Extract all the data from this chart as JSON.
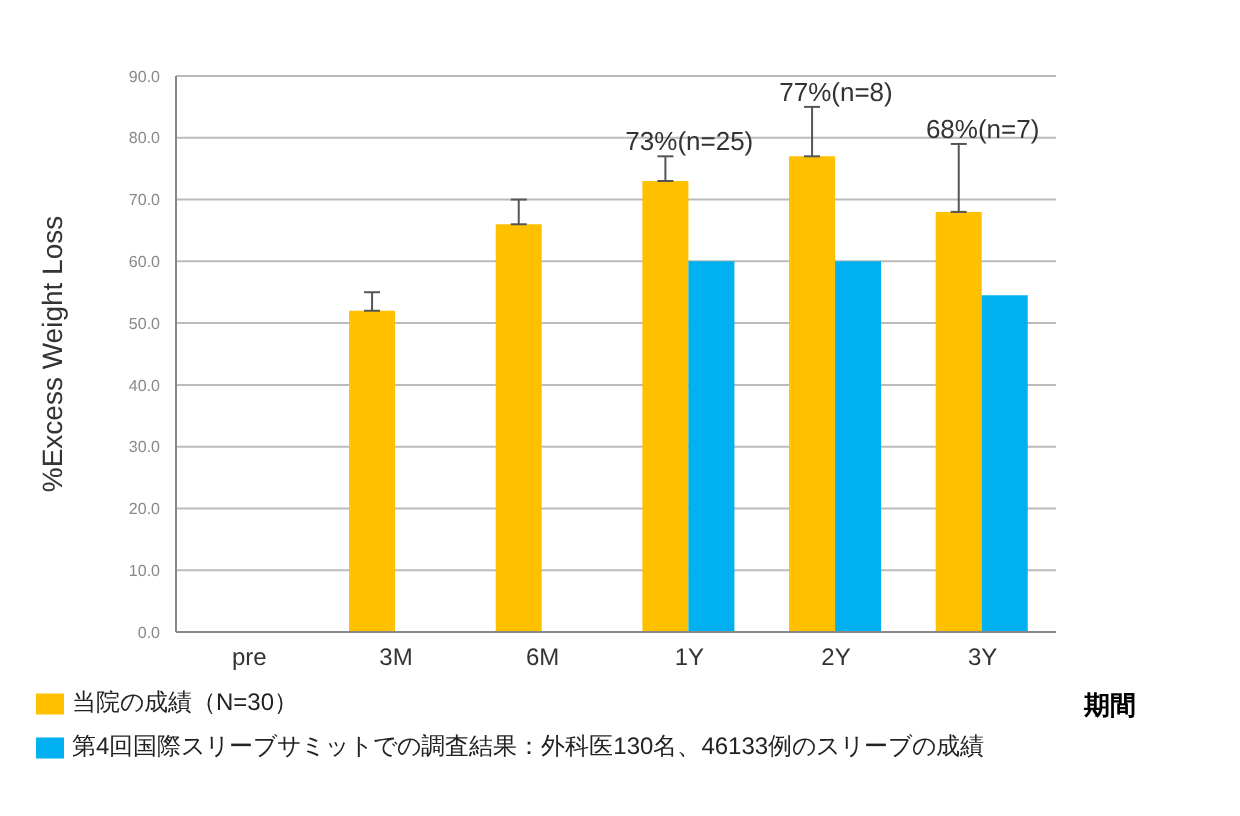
{
  "chart_data": {
    "type": "bar",
    "ylabel": "%Excess Weight Loss",
    "xlabel": "期間",
    "categories": [
      "pre",
      "3M",
      "6M",
      "1Y",
      "2Y",
      "3Y"
    ],
    "series": [
      {
        "name": "当院の成績（N=30）",
        "color": "#ffc000",
        "values": [
          null,
          52,
          66,
          73,
          77,
          68
        ],
        "errors": [
          null,
          [
            52,
            55
          ],
          [
            66,
            70
          ],
          [
            73,
            77
          ],
          [
            77,
            85
          ],
          [
            68,
            79
          ]
        ]
      },
      {
        "name": "第4回国際スリーブサミットでの調査結果：外科医130名、46133例のスリーブの成績",
        "color": "#00b0f0",
        "values": [
          null,
          null,
          null,
          60,
          60,
          54.5
        ]
      }
    ],
    "ylim": [
      0,
      90
    ],
    "yticks": [
      {
        "value": 0,
        "label": "0.0"
      },
      {
        "value": 10,
        "label": "10.0"
      },
      {
        "value": 20,
        "label": "20.0"
      },
      {
        "value": 30,
        "label": "30.0"
      },
      {
        "value": 40,
        "label": "40.0"
      },
      {
        "value": 50,
        "label": "50.0"
      },
      {
        "value": 60,
        "label": "60.0"
      },
      {
        "value": 70,
        "label": "70.0"
      },
      {
        "value": 80,
        "label": "80.0"
      },
      {
        "value": 90,
        "label": "90.0"
      }
    ],
    "grid": "y",
    "legend": "bottom left",
    "annotations": [
      {
        "text": "73%(n=25)",
        "x": "1Y",
        "y": 73
      },
      {
        "text": "77%(n=8)",
        "x": "2Y",
        "y": 77
      },
      {
        "text": "68%(n=7)",
        "x": "3Y",
        "y": 68
      }
    ]
  }
}
